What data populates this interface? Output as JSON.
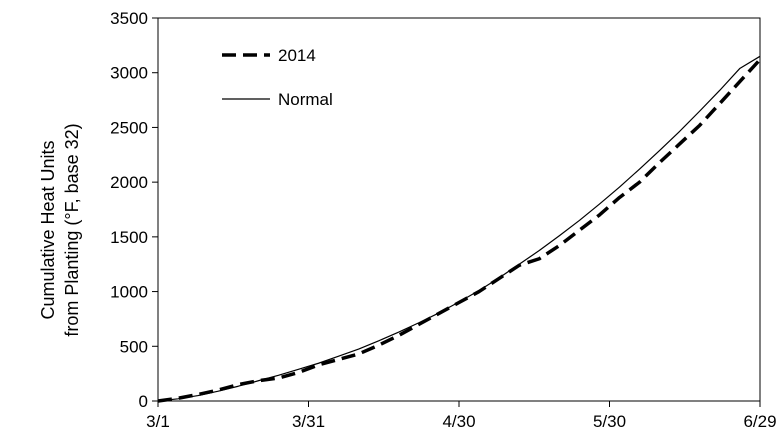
{
  "chart_data": {
    "type": "line",
    "title": "",
    "xlabel": "",
    "ylabel_lines": [
      "Cumulative Heat Units",
      "from Planting (°F, base 32)"
    ],
    "x_tick_labels": [
      "3/1",
      "3/31",
      "4/30",
      "5/30",
      "6/29"
    ],
    "x_tick_days": [
      0,
      30,
      60,
      90,
      120
    ],
    "xlim": [
      0,
      120
    ],
    "y_ticks": [
      0,
      500,
      1000,
      1500,
      2000,
      2500,
      3000,
      3500
    ],
    "ylim": [
      0,
      3500
    ],
    "grid": false,
    "legend_position": "top-left",
    "series": [
      {
        "name": "2014",
        "style": "dashed",
        "color": "#000000",
        "x": [
          0,
          4,
          8,
          12,
          16,
          20,
          24,
          28,
          32,
          36,
          40,
          44,
          48,
          52,
          56,
          60,
          64,
          68,
          72,
          76,
          80,
          84,
          88,
          92,
          96,
          100,
          104,
          108,
          112,
          116,
          120
        ],
        "y": [
          0,
          25,
          60,
          100,
          150,
          185,
          210,
          260,
          330,
          380,
          430,
          510,
          600,
          700,
          800,
          900,
          1000,
          1120,
          1240,
          1300,
          1420,
          1560,
          1700,
          1860,
          2000,
          2180,
          2350,
          2520,
          2720,
          2920,
          3120
        ]
      },
      {
        "name": "Normal",
        "style": "solid",
        "color": "#000000",
        "x": [
          0,
          4,
          8,
          12,
          16,
          20,
          24,
          28,
          32,
          36,
          40,
          44,
          48,
          52,
          56,
          60,
          64,
          68,
          72,
          76,
          80,
          84,
          88,
          92,
          96,
          100,
          104,
          108,
          112,
          116,
          120
        ],
        "y": [
          0,
          20,
          50,
          90,
          135,
          185,
          235,
          290,
          345,
          410,
          475,
          550,
          630,
          715,
          805,
          905,
          1010,
          1125,
          1250,
          1375,
          1510,
          1650,
          1800,
          1955,
          2120,
          2290,
          2465,
          2650,
          2840,
          3040,
          3150
        ]
      }
    ]
  }
}
